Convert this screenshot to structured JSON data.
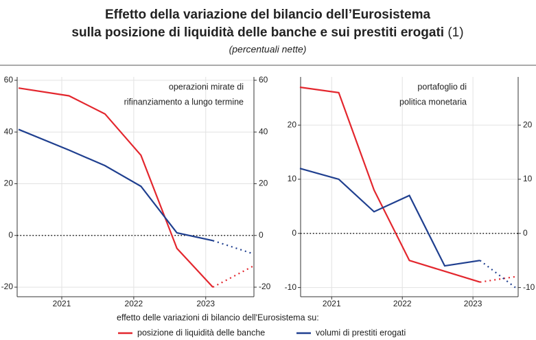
{
  "title": [
    "Effetto della variazione del bilancio dell’Eurosistema",
    "sulla posizione di liquidità delle banche e sui prestiti erogati"
  ],
  "title_note": "(1)",
  "subtitle": "(percentuali nette)",
  "legend_title": "effetto delle variazioni di bilancio dell'Eurosistema su:",
  "chart_data": [
    {
      "type": "line",
      "annotation": [
        "operazioni mirate di",
        "rifinanziamento a lungo termine"
      ],
      "x": [
        2020.4,
        2021.1,
        2021.6,
        2022.1,
        2022.6,
        2023.1,
        2023.65
      ],
      "xlim": [
        2020.38,
        2023.67
      ],
      "xticks": [
        2021,
        2022,
        2023
      ],
      "ylim": [
        -23.7,
        61.3
      ],
      "yticks": [
        -20,
        0,
        20,
        40,
        60
      ],
      "y2lim": [
        -23.7,
        61.3
      ],
      "y2ticks": [
        -20,
        0,
        20,
        40,
        60
      ],
      "grid": true,
      "series": [
        {
          "name": "posizione di liquidità delle banche",
          "color": "#e3262d",
          "values": [
            57,
            54,
            47,
            31,
            -5,
            -20,
            -12
          ]
        },
        {
          "name": "volumi di prestiti erogati",
          "color": "#1f3f8f",
          "values": [
            41,
            33,
            27,
            19,
            1,
            -2,
            -7
          ]
        }
      ]
    },
    {
      "type": "line",
      "annotation": [
        "portafoglio di",
        "politica monetaria"
      ],
      "x": [
        2020.55,
        2021.1,
        2021.6,
        2022.1,
        2022.6,
        2023.1,
        2023.6
      ],
      "xlim": [
        2020.56,
        2023.64
      ],
      "xticks": [
        2021,
        2022,
        2023
      ],
      "ylim": [
        -11.7,
        28.9
      ],
      "yticks": [
        -10,
        0,
        10,
        20
      ],
      "y2lim": [
        -11.7,
        28.9
      ],
      "y2ticks": [
        -10,
        0,
        10,
        20
      ],
      "grid": true,
      "series": [
        {
          "name": "posizione di liquidità delle banche",
          "color": "#e3262d",
          "values": [
            27,
            26,
            8,
            -5,
            -7,
            -9,
            -8
          ]
        },
        {
          "name": "volumi di prestiti erogati",
          "color": "#1f3f8f",
          "values": [
            12,
            10,
            4,
            7,
            -6,
            -5,
            -10
          ]
        }
      ]
    }
  ]
}
